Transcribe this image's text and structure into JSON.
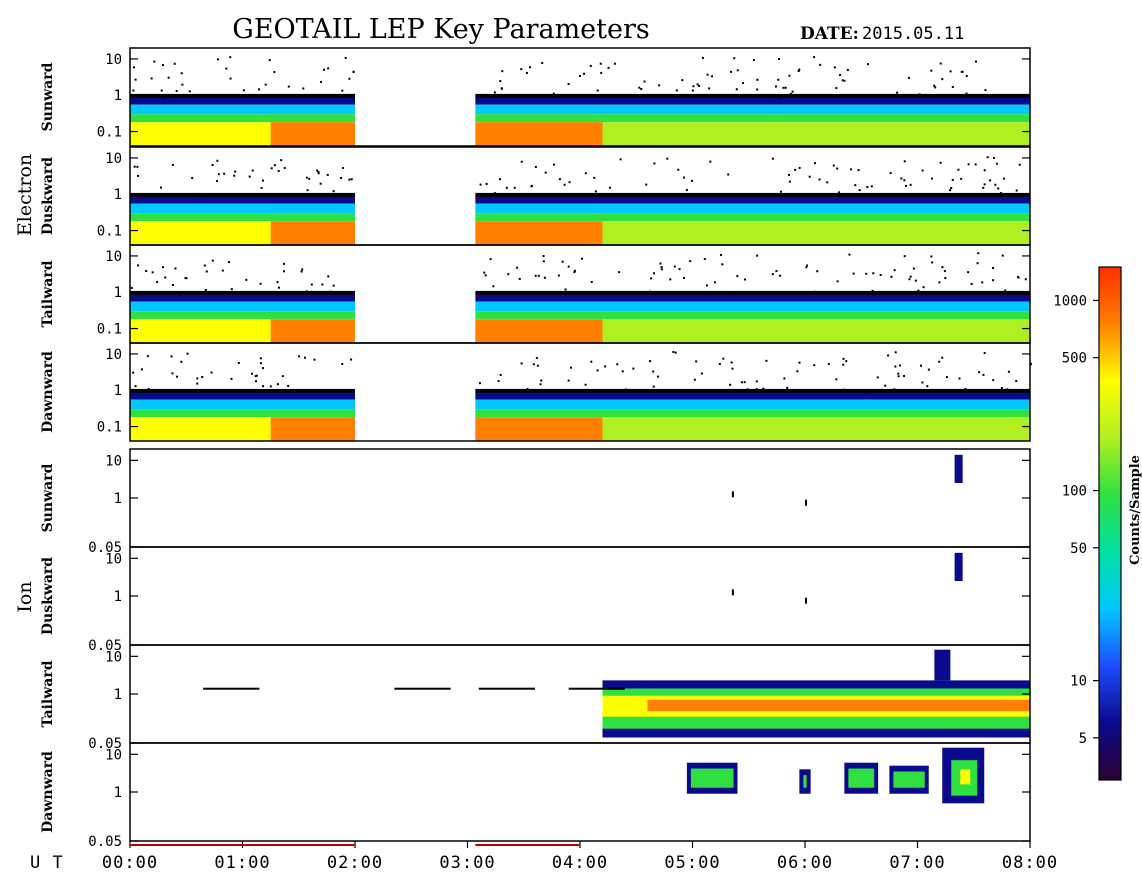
{
  "header": {
    "title": "GEOTAIL LEP Key Parameters",
    "date_label": "DATE:",
    "date_value": "2015.05.11"
  },
  "colors": {
    "spectrum": [
      "#2b0030",
      "#0a0a8c",
      "#1e4cff",
      "#00c8ff",
      "#00e0a0",
      "#30e040",
      "#b0f020",
      "#ffff00",
      "#ff8000",
      "#ff3000"
    ]
  },
  "chart_data": {
    "type": "heatmap",
    "title": "GEOTAIL LEP Key Parameters",
    "x_axis": {
      "label": "U T",
      "ticks": [
        "00:00",
        "01:00",
        "02:00",
        "03:00",
        "04:00",
        "05:00",
        "06:00",
        "07:00",
        "08:00"
      ],
      "range_hours": [
        0,
        8
      ]
    },
    "data_gaps_hours": [
      [
        2.0,
        3.07
      ]
    ],
    "groups": [
      {
        "name": "Electron",
        "panels": [
          {
            "name": "Sunward",
            "y_ticks": [
              "10",
              "1",
              "0.1"
            ],
            "y_range": [
              0.04,
              20
            ],
            "log": true
          },
          {
            "name": "Duskward",
            "y_ticks": [
              "10",
              "1",
              "0.1"
            ],
            "y_range": [
              0.04,
              20
            ],
            "log": true
          },
          {
            "name": "Tailward",
            "y_ticks": [
              "10",
              "1",
              "0.1"
            ],
            "y_range": [
              0.04,
              20
            ],
            "log": true
          },
          {
            "name": "Dawnward",
            "y_ticks": [
              "10",
              "1",
              "0.1"
            ],
            "y_range": [
              0.04,
              20
            ],
            "log": true
          }
        ]
      },
      {
        "name": "Ion",
        "panels": [
          {
            "name": "Sunward",
            "y_ticks": [
              "10",
              "1",
              "0.05"
            ],
            "y_range": [
              0.05,
              20
            ],
            "log": true
          },
          {
            "name": "Duskward",
            "y_ticks": [
              "10",
              "1",
              "0.05"
            ],
            "y_range": [
              0.05,
              20
            ],
            "log": true
          },
          {
            "name": "Tailward",
            "y_ticks": [
              "10",
              "1",
              "0.05"
            ],
            "y_range": [
              0.05,
              20
            ],
            "log": true
          },
          {
            "name": "Dawnward",
            "y_ticks": [
              "10",
              "1",
              "0.05"
            ],
            "y_range": [
              0.05,
              20
            ],
            "log": true
          }
        ]
      }
    ],
    "colorbar": {
      "label": "Counts/Sample",
      "scale": "log",
      "range": [
        3,
        1500
      ],
      "ticks": [
        "1000",
        "500",
        "100",
        "50",
        "10",
        "5"
      ]
    }
  }
}
